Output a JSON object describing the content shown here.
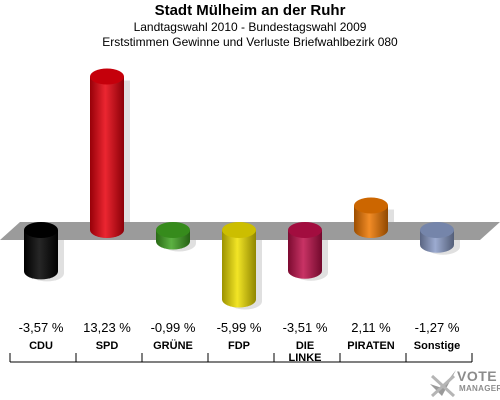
{
  "title": "Stadt Mülheim an der Ruhr",
  "subtitle": "Landtagswahl 2010 - Bundestagswahl 2009",
  "subtitle2": "Erststimmen Gewinne und Verluste Briefwahlbezirk 080",
  "logo": {
    "line1": "VOTE",
    "line2": "MANAGER",
    "icon": "checkmark-ballot-icon"
  },
  "chart_data": {
    "type": "bar",
    "title": "Stadt Mülheim an der Ruhr",
    "subtitle": "Landtagswahl 2010 - Bundestagswahl 2009 / Erststimmen Gewinne und Verluste Briefwahlbezirk 080",
    "categories": [
      "CDU",
      "SPD",
      "GRÜNE",
      "FDP",
      "DIE LINKE",
      "PIRATEN",
      "Sonstige"
    ],
    "category_labels": [
      "CDU",
      "SPD",
      "GRÜNE",
      "FDP",
      "DIE\nLINKE",
      "PIRATEN",
      "Sonstige"
    ],
    "values": [
      -3.57,
      13.23,
      -0.99,
      -5.99,
      -3.51,
      2.11,
      -1.27
    ],
    "value_labels": [
      "-3,57 %",
      "13,23 %",
      "-0,99 %",
      "-5,99 %",
      "-3,51 %",
      "2,11 %",
      "-1,27 %"
    ],
    "colors": [
      "#000000",
      "#e8000d",
      "#3fa321",
      "#f0e000",
      "#be0f4a",
      "#f07800",
      "#8a9cc8"
    ],
    "unit": "%",
    "xlabel": "",
    "ylabel": "",
    "grid": false,
    "legend": "none"
  }
}
